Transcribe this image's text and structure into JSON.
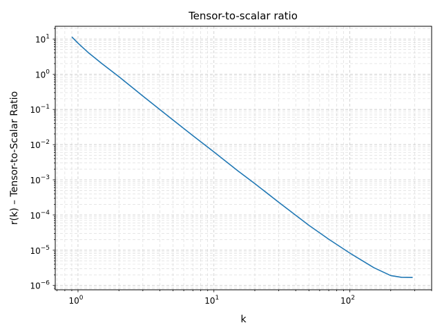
{
  "chart_data": {
    "type": "line",
    "title": "Tensor-to-scalar ratio",
    "xlabel": "k",
    "ylabel": "r(k) – Tensor-to-Scalar Ratio",
    "xscale": "log",
    "yscale": "log",
    "xlim": [
      0.68,
      400
    ],
    "ylim": [
      7.5e-07,
      23
    ],
    "grid": true,
    "legend": "none",
    "x_ticks": [
      {
        "base": "10",
        "exp": "0",
        "value": 1
      },
      {
        "base": "10",
        "exp": "1",
        "value": 10
      },
      {
        "base": "10",
        "exp": "2",
        "value": 100
      }
    ],
    "y_ticks": [
      {
        "base": "10",
        "exp": "−6",
        "value": 1e-06
      },
      {
        "base": "10",
        "exp": "−5",
        "value": 1e-05
      },
      {
        "base": "10",
        "exp": "−4",
        "value": 0.0001
      },
      {
        "base": "10",
        "exp": "−3",
        "value": 0.001
      },
      {
        "base": "10",
        "exp": "−2",
        "value": 0.01
      },
      {
        "base": "10",
        "exp": "−1",
        "value": 0.1
      },
      {
        "base": "10",
        "exp": "0",
        "value": 1
      },
      {
        "base": "10",
        "exp": "1",
        "value": 10
      }
    ],
    "series": [
      {
        "color": "#1f77b4",
        "points": [
          [
            0.9,
            11.5
          ],
          [
            1.0,
            7.6
          ],
          [
            1.2,
            4.0
          ],
          [
            1.5,
            2.0
          ],
          [
            2.0,
            0.85
          ],
          [
            3.0,
            0.24
          ],
          [
            5.0,
            0.05
          ],
          [
            7.0,
            0.018
          ],
          [
            10.0,
            0.0062
          ],
          [
            15.0,
            0.0018
          ],
          [
            20.0,
            0.00078
          ],
          [
            30.0,
            0.00023
          ],
          [
            50.0,
            5.1e-05
          ],
          [
            70.0,
            2.05e-05
          ],
          [
            100.0,
            8.3e-06
          ],
          [
            150.0,
            3.2e-06
          ],
          [
            200.0,
            1.9e-06
          ],
          [
            240.0,
            1.7e-06
          ],
          [
            290.0,
            1.68e-06
          ]
        ]
      }
    ]
  }
}
